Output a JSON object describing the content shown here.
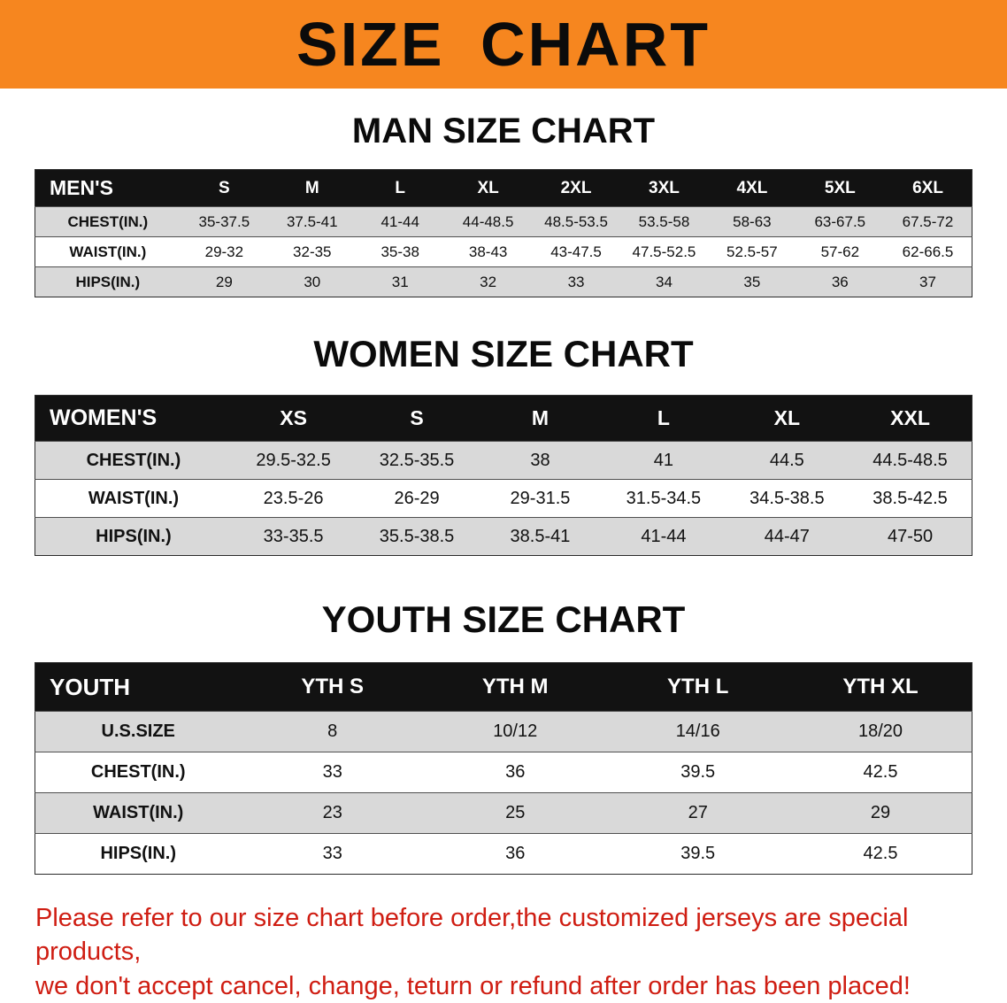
{
  "banner": {
    "title": "SIZE CHART",
    "bg_color": "#f6861f"
  },
  "sections": {
    "men": {
      "heading": "MAN SIZE CHART",
      "table": {
        "header": [
          "MEN'S",
          "S",
          "M",
          "L",
          "XL",
          "2XL",
          "3XL",
          "4XL",
          "5XL",
          "6XL"
        ],
        "rows": [
          [
            "CHEST(IN.)",
            "35-37.5",
            "37.5-41",
            "41-44",
            "44-48.5",
            "48.5-53.5",
            "53.5-58",
            "58-63",
            "63-67.5",
            "67.5-72"
          ],
          [
            "WAIST(IN.)",
            "29-32",
            "32-35",
            "35-38",
            "38-43",
            "43-47.5",
            "47.5-52.5",
            "52.5-57",
            "57-62",
            "62-66.5"
          ],
          [
            "HIPS(IN.)",
            "29",
            "30",
            "31",
            "32",
            "33",
            "34",
            "35",
            "36",
            "37"
          ]
        ]
      }
    },
    "women": {
      "heading": "WOMEN SIZE CHART",
      "table": {
        "header": [
          "WOMEN'S",
          "XS",
          "S",
          "M",
          "L",
          "XL",
          "XXL"
        ],
        "rows": [
          [
            "CHEST(IN.)",
            "29.5-32.5",
            "32.5-35.5",
            "38",
            "41",
            "44.5",
            "44.5-48.5"
          ],
          [
            "WAIST(IN.)",
            "23.5-26",
            "26-29",
            "29-31.5",
            "31.5-34.5",
            "34.5-38.5",
            "38.5-42.5"
          ],
          [
            "HIPS(IN.)",
            "33-35.5",
            "35.5-38.5",
            "38.5-41",
            "41-44",
            "44-47",
            "47-50"
          ]
        ]
      }
    },
    "youth": {
      "heading": "YOUTH SIZE CHART",
      "table": {
        "header": [
          "YOUTH",
          "YTH S",
          "YTH M",
          "YTH L",
          "YTH XL"
        ],
        "rows": [
          [
            "U.S.SIZE",
            "8",
            "10/12",
            "14/16",
            "18/20"
          ],
          [
            "CHEST(IN.)",
            "33",
            "36",
            "39.5",
            "42.5"
          ],
          [
            "WAIST(IN.)",
            "23",
            "25",
            "27",
            "29"
          ],
          [
            "HIPS(IN.)",
            "33",
            "36",
            "39.5",
            "42.5"
          ]
        ]
      }
    }
  },
  "disclaimer": {
    "line1": "Please refer to our size chart before order,the customized jerseys are special products,",
    "line2": "we don't accept cancel, change, teturn or refund after order has been placed!",
    "color": "#cf1d12"
  }
}
